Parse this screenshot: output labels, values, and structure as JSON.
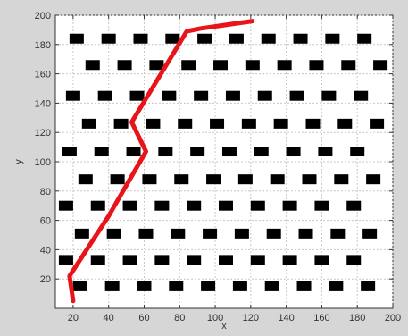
{
  "chart_data": {
    "type": "scatter",
    "title": "",
    "xlabel": "x",
    "ylabel": "y",
    "xlim": [
      10,
      200
    ],
    "ylim": [
      0,
      200
    ],
    "grid": true,
    "x_ticks": [
      20,
      40,
      60,
      80,
      100,
      120,
      140,
      160,
      180,
      200
    ],
    "y_ticks": [
      20,
      40,
      60,
      80,
      100,
      120,
      140,
      160,
      180,
      200
    ],
    "obstacle_color": "#000000",
    "path_color": "#e8141a",
    "background_color": "#d6d6d6",
    "plot_background": "#ffffff",
    "grid_color": "#c8c8c8",
    "series": [
      {
        "marker": "black-rectangle",
        "points": [
          [
            22,
            184
          ],
          [
            40,
            184
          ],
          [
            58,
            184
          ],
          [
            76,
            184
          ],
          [
            94,
            184
          ],
          [
            112,
            184
          ],
          [
            130,
            184
          ],
          [
            148,
            184
          ],
          [
            166,
            184
          ],
          [
            184,
            184
          ],
          [
            31,
            166
          ],
          [
            49,
            166
          ],
          [
            67,
            166
          ],
          [
            85,
            166
          ],
          [
            103,
            166
          ],
          [
            121,
            166
          ],
          [
            139,
            166
          ],
          [
            157,
            166
          ],
          [
            175,
            166
          ],
          [
            193,
            166
          ],
          [
            20,
            145
          ],
          [
            38,
            145
          ],
          [
            56,
            145
          ],
          [
            74,
            145
          ],
          [
            92,
            145
          ],
          [
            110,
            145
          ],
          [
            128,
            145
          ],
          [
            146,
            145
          ],
          [
            164,
            145
          ],
          [
            182,
            145
          ],
          [
            29,
            126
          ],
          [
            47,
            126
          ],
          [
            65,
            126
          ],
          [
            83,
            126
          ],
          [
            101,
            126
          ],
          [
            119,
            126
          ],
          [
            137,
            126
          ],
          [
            155,
            126
          ],
          [
            173,
            126
          ],
          [
            191,
            126
          ],
          [
            18,
            107
          ],
          [
            36,
            107
          ],
          [
            54,
            107
          ],
          [
            72,
            107
          ],
          [
            90,
            107
          ],
          [
            108,
            107
          ],
          [
            126,
            107
          ],
          [
            144,
            107
          ],
          [
            162,
            107
          ],
          [
            180,
            107
          ],
          [
            27,
            88
          ],
          [
            45,
            88
          ],
          [
            63,
            88
          ],
          [
            81,
            88
          ],
          [
            99,
            88
          ],
          [
            117,
            88
          ],
          [
            135,
            88
          ],
          [
            153,
            88
          ],
          [
            171,
            88
          ],
          [
            189,
            88
          ],
          [
            16,
            70
          ],
          [
            34,
            70
          ],
          [
            52,
            70
          ],
          [
            70,
            70
          ],
          [
            88,
            70
          ],
          [
            106,
            70
          ],
          [
            124,
            70
          ],
          [
            142,
            70
          ],
          [
            160,
            70
          ],
          [
            178,
            70
          ],
          [
            25,
            51
          ],
          [
            43,
            51
          ],
          [
            61,
            51
          ],
          [
            79,
            51
          ],
          [
            97,
            51
          ],
          [
            115,
            51
          ],
          [
            133,
            51
          ],
          [
            151,
            51
          ],
          [
            169,
            51
          ],
          [
            187,
            51
          ],
          [
            16,
            33
          ],
          [
            34,
            33
          ],
          [
            52,
            33
          ],
          [
            70,
            33
          ],
          [
            88,
            33
          ],
          [
            106,
            33
          ],
          [
            124,
            33
          ],
          [
            142,
            33
          ],
          [
            160,
            33
          ],
          [
            178,
            33
          ],
          [
            24,
            15
          ],
          [
            42,
            15
          ],
          [
            60,
            15
          ],
          [
            78,
            15
          ],
          [
            96,
            15
          ],
          [
            114,
            15
          ],
          [
            132,
            15
          ],
          [
            150,
            15
          ],
          [
            168,
            15
          ],
          [
            186,
            15
          ]
        ]
      },
      {
        "marker": "line",
        "points": [
          [
            20,
            5
          ],
          [
            18,
            22
          ],
          [
            40,
            63
          ],
          [
            61,
            107
          ],
          [
            53,
            127
          ],
          [
            84,
            189
          ],
          [
            92,
            191
          ],
          [
            121,
            196
          ]
        ]
      }
    ]
  }
}
